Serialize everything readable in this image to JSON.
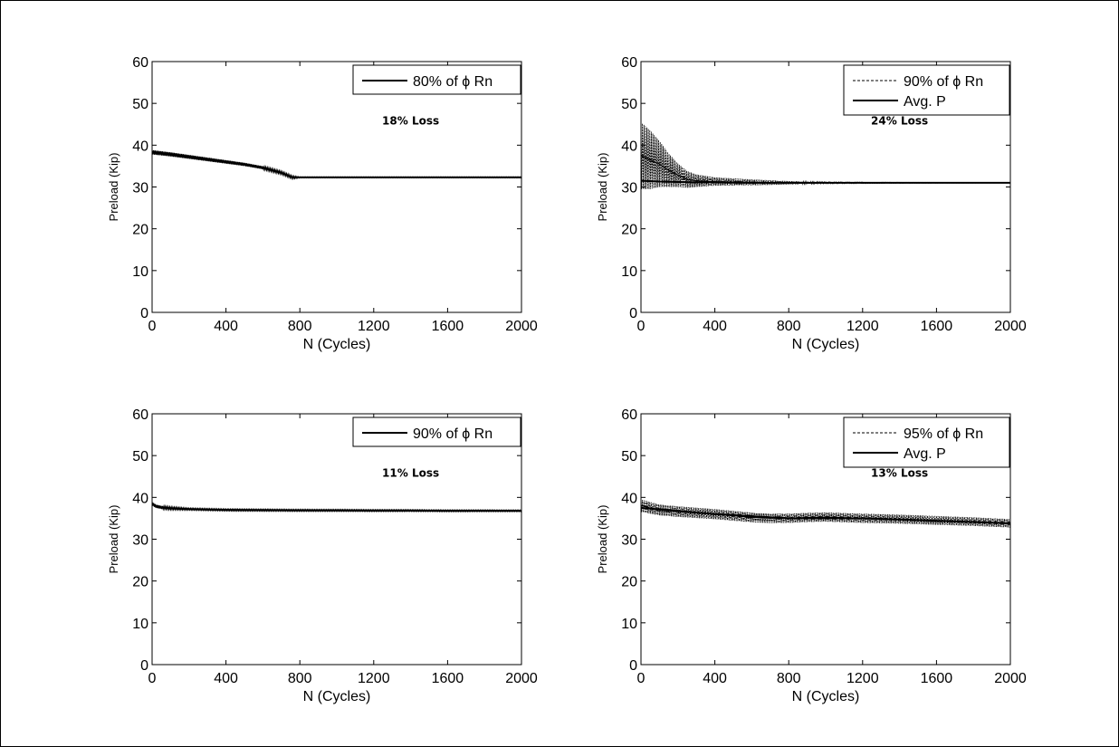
{
  "chart_data": [
    {
      "type": "line",
      "xlabel": "N (Cycles)",
      "ylabel": "Preload (Kip)",
      "xlim": [
        0,
        2000
      ],
      "ylim": [
        0,
        60
      ],
      "xticks": [
        "0",
        "400",
        "800",
        "1200",
        "1600",
        "2000"
      ],
      "yticks": [
        "0",
        "10",
        "20",
        "30",
        "40",
        "50",
        "60"
      ],
      "grid": false,
      "legend_position": "top-right",
      "annotation": {
        "text": "18% Loss",
        "x": 1400,
        "y": 45
      },
      "series": [
        {
          "name": "80% of ϕ Rn",
          "style": "solid",
          "x": [
            0,
            100,
            200,
            300,
            400,
            500,
            600,
            700,
            760,
            800,
            1000,
            1200,
            1400,
            1600,
            1800,
            2000
          ],
          "y": [
            38.3,
            37.8,
            37.2,
            36.6,
            36.0,
            35.4,
            34.6,
            33.4,
            32.3,
            32.3,
            32.3,
            32.3,
            32.3,
            32.3,
            32.3,
            32.3
          ],
          "band": [
            [
              0,
              0.5
            ],
            [
              760,
              0.3
            ],
            [
              800,
              0.1
            ],
            [
              2000,
              0.1
            ]
          ]
        }
      ]
    },
    {
      "type": "line",
      "xlabel": "N (Cycles)",
      "ylabel": "Preload (Kip)",
      "xlim": [
        0,
        2000
      ],
      "ylim": [
        0,
        60
      ],
      "xticks": [
        "0",
        "400",
        "800",
        "1200",
        "1600",
        "2000"
      ],
      "yticks": [
        "0",
        "10",
        "20",
        "30",
        "40",
        "50",
        "60"
      ],
      "grid": false,
      "legend_position": "top-right",
      "annotation": {
        "text": "24% Loss",
        "x": 1400,
        "y": 45
      },
      "series": [
        {
          "name": "90% of ϕ Rn",
          "style": "dashed",
          "x": [
            0,
            50,
            100,
            150,
            200,
            250,
            300,
            400,
            500,
            600,
            800,
            1000,
            1200,
            1400,
            2000
          ],
          "y": [
            37.5,
            36.5,
            35.5,
            34.0,
            32.8,
            31.8,
            31.5,
            31.3,
            31.2,
            31.1,
            31.0,
            31.0,
            31.0,
            31.0,
            31.0
          ],
          "band": [
            [
              0,
              8.0
            ],
            [
              50,
              7.0
            ],
            [
              100,
              5.5
            ],
            [
              150,
              4.0
            ],
            [
              200,
              2.8
            ],
            [
              250,
              2.0
            ],
            [
              300,
              1.5
            ],
            [
              400,
              1.0
            ],
            [
              600,
              0.7
            ],
            [
              800,
              0.4
            ],
            [
              1000,
              0.2
            ],
            [
              1400,
              0.1
            ],
            [
              2000,
              0.05
            ]
          ]
        },
        {
          "name": "Avg. P",
          "style": "solid",
          "x": [
            0,
            100,
            200,
            300,
            400,
            600,
            800,
            1000,
            1400,
            2000
          ],
          "y": [
            31.5,
            31.3,
            31.2,
            31.1,
            31.1,
            31.0,
            31.0,
            31.0,
            31.0,
            31.0
          ],
          "band": []
        }
      ]
    },
    {
      "type": "line",
      "xlabel": "N (Cycles)",
      "ylabel": "Preload (Kip)",
      "xlim": [
        0,
        2000
      ],
      "ylim": [
        0,
        60
      ],
      "xticks": [
        "0",
        "400",
        "800",
        "1200",
        "1600",
        "2000"
      ],
      "yticks": [
        "0",
        "10",
        "20",
        "30",
        "40",
        "50",
        "60"
      ],
      "grid": false,
      "legend_position": "top-right",
      "annotation": {
        "text": "11% Loss",
        "x": 1400,
        "y": 45
      },
      "series": [
        {
          "name": "90% of ϕ Rn",
          "style": "solid",
          "x": [
            0,
            20,
            50,
            100,
            200,
            300,
            400,
            600,
            800,
            1000,
            1200,
            1400,
            1600,
            1800,
            2000
          ],
          "y": [
            38.5,
            37.9,
            37.6,
            37.4,
            37.2,
            37.1,
            37.0,
            36.95,
            36.9,
            36.9,
            36.85,
            36.85,
            36.8,
            36.8,
            36.8
          ],
          "band": [
            [
              0,
              0.4
            ],
            [
              200,
              0.2
            ],
            [
              2000,
              0.15
            ]
          ]
        }
      ]
    },
    {
      "type": "line",
      "xlabel": "N (Cycles)",
      "ylabel": "Preload (Kip)",
      "xlim": [
        0,
        2000
      ],
      "ylim": [
        0,
        60
      ],
      "xticks": [
        "0",
        "400",
        "800",
        "1200",
        "1600",
        "2000"
      ],
      "yticks": [
        "0",
        "10",
        "20",
        "30",
        "40",
        "50",
        "60"
      ],
      "grid": false,
      "legend_position": "top-right",
      "annotation": {
        "text": "13% Loss",
        "x": 1400,
        "y": 45
      },
      "series": [
        {
          "name": "95% of ϕ Rn",
          "style": "dashed",
          "x": [
            0,
            100,
            200,
            300,
            400,
            500,
            600,
            700,
            800,
            900,
            1000,
            1200,
            1400,
            1600,
            1800,
            2000
          ],
          "y": [
            38.0,
            37.0,
            36.6,
            36.3,
            36.0,
            35.6,
            35.2,
            35.0,
            35.0,
            35.2,
            35.3,
            35.0,
            34.8,
            34.5,
            34.2,
            33.8
          ],
          "band": [
            [
              0,
              1.5
            ],
            [
              100,
              1.3
            ],
            [
              400,
              1.2
            ],
            [
              800,
              1.1
            ],
            [
              1200,
              1.1
            ],
            [
              2000,
              1.0
            ]
          ]
        },
        {
          "name": "Avg. P",
          "style": "solid",
          "x": [
            0,
            400,
            800,
            1200,
            1600,
            2000
          ],
          "y": [
            37.5,
            36.0,
            35.0,
            35.0,
            34.4,
            33.8
          ],
          "band": []
        }
      ]
    }
  ]
}
